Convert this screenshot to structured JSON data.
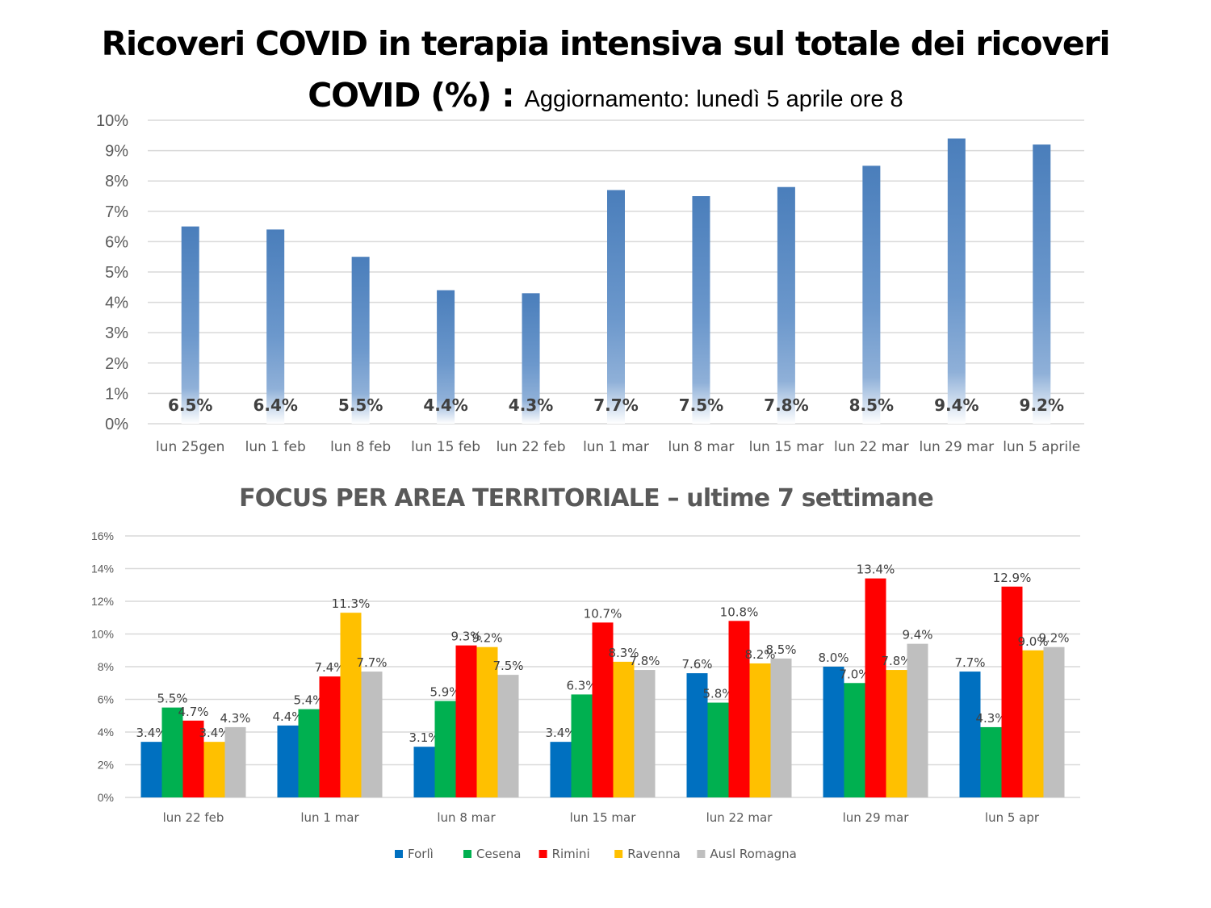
{
  "title": {
    "main": "Ricoveri COVID in terapia intensiva sul totale dei ricoveri COVID (%) :",
    "main_line1": "Ricoveri COVID in terapia intensiva sul totale dei ricoveri",
    "main_line2": "COVID (%) :",
    "update": "Aggiornamento: lunedì 5 aprile ore 8"
  },
  "chart_data": [
    {
      "type": "bar",
      "title": "Ricoveri COVID in terapia intensiva sul totale dei ricoveri COVID (%)",
      "xlabel": "",
      "ylabel": "",
      "ylim": [
        0,
        10
      ],
      "yticks": [
        "0%",
        "1%",
        "2%",
        "3%",
        "4%",
        "5%",
        "6%",
        "7%",
        "8%",
        "9%",
        "10%"
      ],
      "grid": true,
      "categories": [
        "lun 25gen",
        "lun 1 feb",
        "lun 8 feb",
        "lun 15 feb",
        "lun 22 feb",
        "lun 1 mar",
        "lun 8 mar",
        "lun 15 mar",
        "lun 22 mar",
        "lun 29 mar",
        "lun 5 aprile"
      ],
      "values": [
        6.5,
        6.4,
        5.5,
        4.4,
        4.3,
        7.7,
        7.5,
        7.8,
        8.5,
        9.4,
        9.2
      ],
      "labels": [
        "6.5%",
        "6.4%",
        "5.5%",
        "4.4%",
        "4.3%",
        "7.7%",
        "7.5%",
        "7.8%",
        "8.5%",
        "9.4%",
        "9.2%"
      ],
      "color": "#4F81BD"
    },
    {
      "type": "bar",
      "title": "FOCUS PER AREA TERRITORIALE – ultime 7 settimane",
      "title_bold_part": "FOCUS PER AREA TERRITORIALE",
      "title_rest": " – ultime 7 settimane",
      "xlabel": "",
      "ylabel": "",
      "ylim": [
        0,
        16
      ],
      "yticks": [
        "0%",
        "2%",
        "4%",
        "6%",
        "8%",
        "10%",
        "12%",
        "14%",
        "16%"
      ],
      "grid": true,
      "legend_position": "bottom",
      "categories": [
        "lun 22 feb",
        "lun 1 mar",
        "lun 8 mar",
        "lun 15 mar",
        "lun 22 mar",
        "lun 29 mar",
        "lun 5 apr"
      ],
      "series": [
        {
          "name": "Forlì",
          "color": "#0070C0",
          "values": [
            3.4,
            4.4,
            3.1,
            3.4,
            7.6,
            8.0,
            7.7
          ],
          "labels": [
            "3.4%",
            "4.4%",
            "3.1%",
            "3.4%",
            "7.6%",
            "8.0%",
            "7.7%"
          ]
        },
        {
          "name": "Cesena",
          "color": "#00B050",
          "values": [
            5.5,
            5.4,
            5.9,
            6.3,
            5.8,
            7.0,
            4.3
          ],
          "labels": [
            "5.5%",
            "5.4%",
            "5.9%",
            "6.3%",
            "5.8%",
            "7.0%",
            "4.3%"
          ]
        },
        {
          "name": "Rimini",
          "color": "#FF0000",
          "values": [
            4.7,
            7.4,
            9.3,
            10.7,
            10.8,
            13.4,
            12.9
          ],
          "labels": [
            "4.7%",
            "7.4%",
            "9.3%",
            "10.7%",
            "10.8%",
            "13.4%",
            "12.9%"
          ]
        },
        {
          "name": "Ravenna",
          "color": "#FFC000",
          "values": [
            3.4,
            11.3,
            9.2,
            8.3,
            8.2,
            7.8,
            9.0
          ],
          "labels": [
            "3.4%",
            "11.3%",
            "9.2%",
            "8.3%",
            "8.2%",
            "7.8%",
            "9.0%"
          ]
        },
        {
          "name": "Ausl Romagna",
          "color": "#BFBFBF",
          "values": [
            4.3,
            7.7,
            7.5,
            7.8,
            8.5,
            9.4,
            9.2
          ],
          "labels": [
            "4.3%",
            "7.7%",
            "7.5%",
            "7.8%",
            "8.5%",
            "9.4%",
            "9.2%"
          ]
        }
      ]
    }
  ]
}
